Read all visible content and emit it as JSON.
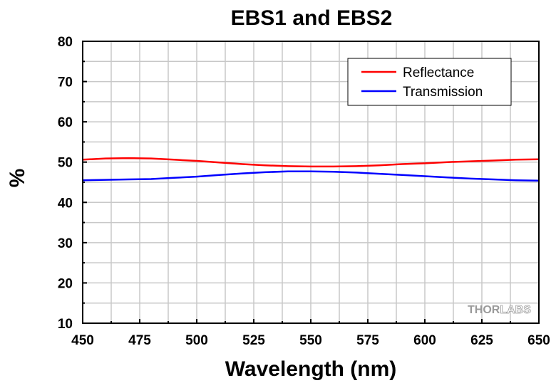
{
  "chart_data": {
    "type": "line",
    "title": "EBS1 and EBS2",
    "xlabel": "Wavelength (nm)",
    "ylabel": "%",
    "xlim": [
      450,
      650
    ],
    "ylim": [
      10,
      80
    ],
    "xticks": [
      450,
      475,
      500,
      525,
      550,
      575,
      600,
      625,
      650
    ],
    "yticks": [
      10,
      20,
      30,
      40,
      50,
      60,
      70,
      80
    ],
    "grid": true,
    "legend_position": "top-right",
    "series": [
      {
        "name": "Reflectance",
        "color": "#ff0000",
        "x": [
          450,
          460,
          470,
          480,
          490,
          500,
          510,
          520,
          530,
          540,
          550,
          560,
          570,
          580,
          590,
          600,
          610,
          620,
          630,
          640,
          650
        ],
        "y": [
          50.6,
          50.9,
          51.0,
          50.9,
          50.6,
          50.3,
          49.9,
          49.5,
          49.2,
          49.0,
          48.9,
          48.9,
          49.0,
          49.2,
          49.5,
          49.7,
          50.0,
          50.2,
          50.4,
          50.6,
          50.7
        ]
      },
      {
        "name": "Transmission",
        "color": "#0000ff",
        "x": [
          450,
          460,
          470,
          480,
          490,
          500,
          510,
          520,
          530,
          540,
          550,
          560,
          570,
          580,
          590,
          600,
          610,
          620,
          630,
          640,
          650
        ],
        "y": [
          45.5,
          45.6,
          45.7,
          45.8,
          46.1,
          46.4,
          46.8,
          47.2,
          47.5,
          47.7,
          47.7,
          47.6,
          47.4,
          47.1,
          46.8,
          46.5,
          46.2,
          45.9,
          45.7,
          45.5,
          45.4
        ]
      }
    ]
  },
  "watermark": {
    "part1": "THOR",
    "part2": "LABS"
  }
}
